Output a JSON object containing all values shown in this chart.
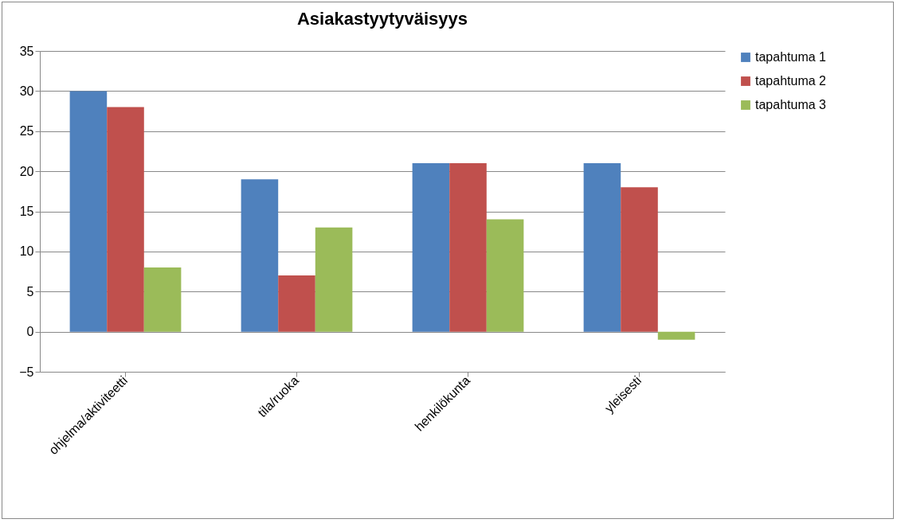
{
  "chart_data": {
    "type": "bar",
    "title": "Asiakastyytyväisyys",
    "categories": [
      "ohjelma/aktiviteetti",
      "tila/ruoka",
      "henkilökunta",
      "yleisesti"
    ],
    "series": [
      {
        "name": "tapahtuma 1",
        "color": "#4f81bd",
        "values": [
          30,
          19,
          21,
          21
        ]
      },
      {
        "name": "tapahtuma 2",
        "color": "#c0504d",
        "values": [
          28,
          7,
          21,
          18
        ]
      },
      {
        "name": "tapahtuma 3",
        "color": "#9bbb59",
        "values": [
          8,
          13,
          14,
          -1
        ]
      }
    ],
    "ylim": [
      -5,
      35
    ],
    "yticks": [
      -5,
      0,
      5,
      10,
      15,
      20,
      25,
      30,
      35
    ],
    "grid": "y",
    "legend": "right"
  }
}
